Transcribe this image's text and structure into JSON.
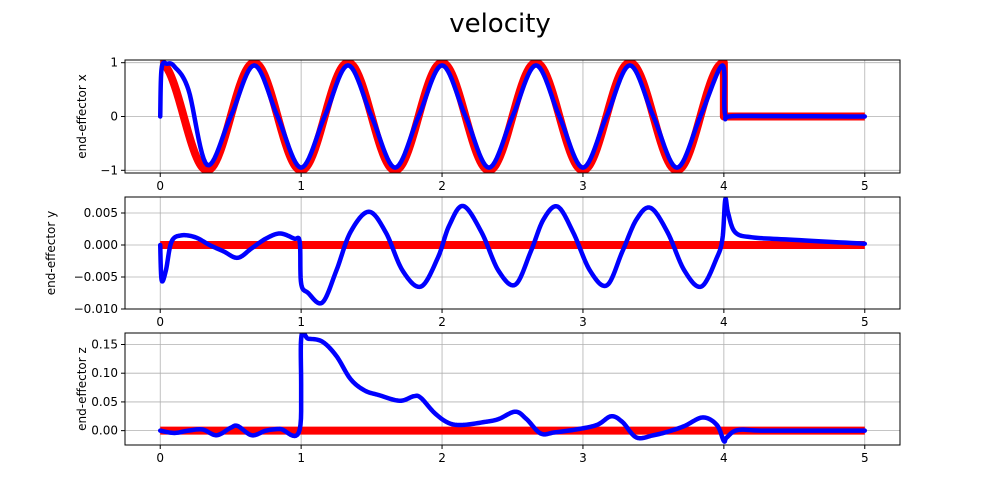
{
  "chart_data": {
    "title": "velocity",
    "type": "line",
    "grid": true,
    "colors": {
      "reference": "#ff0000",
      "actual": "#0000ff"
    },
    "xlim": [
      -0.25,
      5.25
    ],
    "xticks": [
      0,
      1,
      2,
      3,
      4,
      5
    ],
    "subplots": [
      {
        "ylabel": "end-effector x",
        "ylim": [
          -1.05,
          1.05
        ],
        "yticks": [
          -1,
          0,
          1
        ],
        "ytick_labels": [
          "−1",
          "0",
          "1"
        ],
        "reference": {
          "segments": [
            {
              "kind": "sine",
              "x_range": [
                0,
                4
              ],
              "amplitude": 1.0,
              "frequency_hz": 1.5,
              "phase": "cos"
            },
            {
              "kind": "const",
              "x_range": [
                4,
                5
              ],
              "value": 0.0
            }
          ]
        },
        "actual": {
          "points": [
            [
              0,
              0
            ],
            [
              0.01,
              0.9
            ],
            [
              0.05,
              0.98
            ],
            [
              0.1,
              0.93
            ],
            [
              0.2,
              0.5
            ],
            [
              0.333,
              -0.9
            ],
            [
              0.5,
              0
            ],
            [
              0.667,
              0.95
            ],
            [
              0.833,
              0
            ],
            [
              1.0,
              -0.95
            ],
            [
              1.167,
              0
            ],
            [
              1.333,
              0.95
            ],
            [
              1.5,
              0
            ],
            [
              1.667,
              -0.95
            ],
            [
              1.833,
              0
            ],
            [
              2.0,
              0.95
            ],
            [
              2.167,
              0
            ],
            [
              2.333,
              -0.95
            ],
            [
              2.5,
              0
            ],
            [
              2.667,
              0.95
            ],
            [
              2.833,
              0
            ],
            [
              3.0,
              -0.95
            ],
            [
              3.167,
              0
            ],
            [
              3.333,
              0.95
            ],
            [
              3.5,
              0
            ],
            [
              3.667,
              -0.95
            ],
            [
              3.833,
              0
            ],
            [
              3.99,
              0.95
            ],
            [
              4.01,
              0.02
            ],
            [
              4.1,
              0.01
            ],
            [
              5.0,
              0.0
            ]
          ]
        }
      },
      {
        "ylabel": "end-effector y",
        "ylim": [
          -0.01,
          0.0075
        ],
        "yticks": [
          -0.01,
          -0.005,
          0,
          0.005
        ],
        "ytick_labels": [
          "−0.010",
          "−0.005",
          "0.000",
          "0.005"
        ],
        "reference": {
          "segments": [
            {
              "kind": "const",
              "x_range": [
                0,
                5
              ],
              "value": 0.0
            }
          ]
        },
        "actual": {
          "points": [
            [
              0,
              0
            ],
            [
              0.01,
              -0.0055
            ],
            [
              0.04,
              -0.004
            ],
            [
              0.08,
              0.0005
            ],
            [
              0.15,
              0.0015
            ],
            [
              0.25,
              0.0012
            ],
            [
              0.35,
              0
            ],
            [
              0.45,
              -0.001
            ],
            [
              0.55,
              -0.002
            ],
            [
              0.65,
              -0.0005
            ],
            [
              0.75,
              0.001
            ],
            [
              0.85,
              0.0018
            ],
            [
              0.95,
              0.001
            ],
            [
              0.99,
              0.0005
            ],
            [
              1.0,
              -0.006
            ],
            [
              1.05,
              -0.0075
            ],
            [
              1.15,
              -0.009
            ],
            [
              1.25,
              -0.004
            ],
            [
              1.35,
              0.002
            ],
            [
              1.48,
              0.0052
            ],
            [
              1.6,
              0.002
            ],
            [
              1.72,
              -0.004
            ],
            [
              1.85,
              -0.0065
            ],
            [
              1.97,
              -0.002
            ],
            [
              2.05,
              0.003
            ],
            [
              2.15,
              0.0061
            ],
            [
              2.28,
              0.002
            ],
            [
              2.4,
              -0.004
            ],
            [
              2.52,
              -0.0062
            ],
            [
              2.63,
              -0.001
            ],
            [
              2.72,
              0.004
            ],
            [
              2.82,
              0.006
            ],
            [
              2.93,
              0.002
            ],
            [
              3.05,
              -0.004
            ],
            [
              3.17,
              -0.0063
            ],
            [
              3.28,
              -0.001
            ],
            [
              3.38,
              0.004
            ],
            [
              3.48,
              0.0058
            ],
            [
              3.6,
              0.002
            ],
            [
              3.72,
              -0.004
            ],
            [
              3.84,
              -0.0065
            ],
            [
              3.95,
              -0.002
            ],
            [
              3.99,
              0.001
            ],
            [
              4.01,
              0.0071
            ],
            [
              4.03,
              0.005
            ],
            [
              4.08,
              0.002
            ],
            [
              4.2,
              0.0012
            ],
            [
              4.5,
              0.0008
            ],
            [
              5.0,
              0.0002
            ]
          ]
        }
      },
      {
        "ylabel": "end-effector z",
        "ylim": [
          -0.025,
          0.17
        ],
        "yticks": [
          0,
          0.05,
          0.1,
          0.15
        ],
        "ytick_labels": [
          "0.00",
          "0.05",
          "0.10",
          "0.15"
        ],
        "reference": {
          "segments": [
            {
              "kind": "const",
              "x_range": [
                0,
                5
              ],
              "value": 0.0
            }
          ]
        },
        "actual": {
          "points": [
            [
              0,
              0
            ],
            [
              0.1,
              -0.004
            ],
            [
              0.2,
              0
            ],
            [
              0.3,
              0.002
            ],
            [
              0.4,
              -0.008
            ],
            [
              0.5,
              0.005
            ],
            [
              0.55,
              0.008
            ],
            [
              0.65,
              -0.008
            ],
            [
              0.75,
              0
            ],
            [
              0.85,
              0.003
            ],
            [
              0.99,
              0.002
            ],
            [
              1.0,
              0.16
            ],
            [
              1.05,
              0.16
            ],
            [
              1.15,
              0.155
            ],
            [
              1.25,
              0.13
            ],
            [
              1.35,
              0.09
            ],
            [
              1.45,
              0.07
            ],
            [
              1.55,
              0.062
            ],
            [
              1.7,
              0.052
            ],
            [
              1.8,
              0.06
            ],
            [
              1.85,
              0.057
            ],
            [
              1.95,
              0.03
            ],
            [
              2.05,
              0.013
            ],
            [
              2.15,
              0.01
            ],
            [
              2.3,
              0.015
            ],
            [
              2.4,
              0.02
            ],
            [
              2.52,
              0.033
            ],
            [
              2.6,
              0.02
            ],
            [
              2.7,
              -0.005
            ],
            [
              2.8,
              -0.003
            ],
            [
              2.95,
              0.002
            ],
            [
              3.1,
              0.01
            ],
            [
              3.2,
              0.025
            ],
            [
              3.28,
              0.015
            ],
            [
              3.38,
              -0.012
            ],
            [
              3.5,
              -0.008
            ],
            [
              3.6,
              -0.002
            ],
            [
              3.72,
              0.008
            ],
            [
              3.85,
              0.023
            ],
            [
              3.95,
              0.01
            ],
            [
              4.0,
              -0.018
            ],
            [
              4.02,
              -0.012
            ],
            [
              4.1,
              0.001
            ],
            [
              4.3,
              0
            ],
            [
              5.0,
              0
            ]
          ]
        }
      }
    ]
  }
}
